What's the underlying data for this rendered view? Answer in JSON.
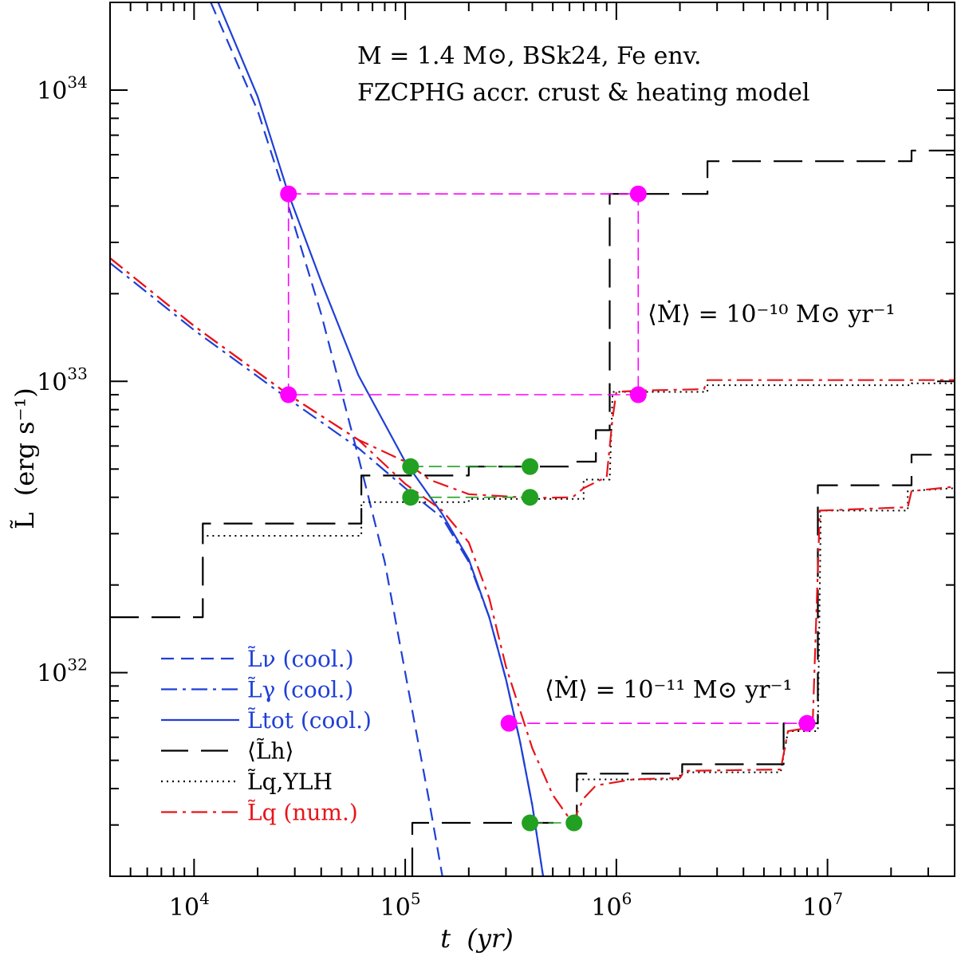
{
  "chart_data": {
    "type": "line",
    "xscale": "log",
    "yscale": "log",
    "xlim": [
      4000,
      40000000
    ],
    "ylim": [
      2e+31,
      2e+34
    ],
    "xlabel": "t  (yr)",
    "ylabel": "L̃  (erg s⁻¹)",
    "x_ticks": [
      {
        "value": 10000,
        "base": "10",
        "exp": "4"
      },
      {
        "value": 100000,
        "base": "10",
        "exp": "5"
      },
      {
        "value": 1000000,
        "base": "10",
        "exp": "6"
      },
      {
        "value": 10000000,
        "base": "10",
        "exp": "7"
      }
    ],
    "y_ticks": [
      {
        "value": 1e+32,
        "base": "10",
        "exp": "32"
      },
      {
        "value": 1e+33,
        "base": "10",
        "exp": "33"
      },
      {
        "value": 1e+34,
        "base": "10",
        "exp": "34"
      }
    ],
    "annotations": {
      "title_line1": "M = 1.4 M⊙, BSk24, Fe env.",
      "title_line2": "FZCPHG accr. crust & heating model",
      "mdot_high": "⟨Ṁ⟩ = 10⁻¹⁰ M⊙ yr⁻¹",
      "mdot_low": "⟨Ṁ⟩ = 10⁻¹¹ M⊙ yr⁻¹"
    },
    "legend": {
      "position": "bottom-left",
      "entries": [
        {
          "label": "L̃ν (cool.)",
          "color": "#1f3fd6",
          "style": "dashed"
        },
        {
          "label": "L̃γ (cool.)",
          "color": "#1f3fd6",
          "style": "dashdot"
        },
        {
          "label": "L̃tot (cool.)",
          "color": "#1f3fd6",
          "style": "solid"
        },
        {
          "label": "⟨L̃h⟩",
          "color": "#000000",
          "style": "longdash"
        },
        {
          "label": "L̃q,YLH",
          "color": "#000000",
          "style": "dotted"
        },
        {
          "label": "L̃q (num.)",
          "color": "#e8141b",
          "style": "dashdot"
        }
      ]
    },
    "series": [
      {
        "name": "L_nu (cool.)",
        "color": "#1f3fd6",
        "style": "dashed",
        "points": [
          [
            12000,
            2e+34
          ],
          [
            20000,
            8.5e+33
          ],
          [
            28000,
            4e+33
          ],
          [
            40000,
            1.7e+33
          ],
          [
            60000,
            5.5e+32
          ],
          [
            80000,
            2.4e+32
          ],
          [
            100000,
            1e+32
          ],
          [
            130000,
            3.6e+31
          ],
          [
            150000,
            2e+31
          ]
        ]
      },
      {
        "name": "L_gamma (cool.)",
        "color": "#1f3fd6",
        "style": "dashdot",
        "points": [
          [
            4000,
            2.55e+33
          ],
          [
            10000,
            1.5e+33
          ],
          [
            28000,
            8.7e+32
          ],
          [
            60000,
            5.9e+32
          ],
          [
            100000,
            4.3e+32
          ],
          [
            150000,
            3.4e+32
          ],
          [
            200000,
            2.4e+32
          ],
          [
            250000,
            1.55e+32
          ],
          [
            300000,
            9.5e+31
          ],
          [
            350000,
            5.8e+31
          ],
          [
            400000,
            3.5e+31
          ],
          [
            450000,
            2e+31
          ]
        ]
      },
      {
        "name": "L_tot (cool.)",
        "color": "#1f3fd6",
        "style": "solid",
        "points": [
          [
            13000,
            2e+34
          ],
          [
            20000,
            9.5e+33
          ],
          [
            28000,
            4.4e+33
          ],
          [
            40000,
            2.2e+33
          ],
          [
            60000,
            1.05e+33
          ],
          [
            100000,
            5.3e+32
          ],
          [
            150000,
            3.5e+32
          ],
          [
            200000,
            2.45e+32
          ],
          [
            250000,
            1.55e+32
          ],
          [
            300000,
            9.5e+31
          ],
          [
            350000,
            5.8e+31
          ],
          [
            400000,
            3.5e+31
          ],
          [
            450000,
            2e+31
          ]
        ]
      },
      {
        "name": "<L_h> 1e-10",
        "color": "#000000",
        "style": "longdash",
        "points": [
          [
            4000,
            1.55e+32
          ],
          [
            11000,
            1.55e+32
          ],
          [
            11000,
            3.25e+32
          ],
          [
            62000,
            3.25e+32
          ],
          [
            62000,
            4.75e+32
          ],
          [
            200000,
            4.75e+32
          ],
          [
            200000,
            5.1e+32
          ],
          [
            600000,
            5.1e+32
          ],
          [
            600000,
            5.3e+32
          ],
          [
            800000,
            5.3e+32
          ],
          [
            800000,
            6.8e+32
          ],
          [
            930000,
            6.8e+32
          ],
          [
            930000,
            4.4e+33
          ],
          [
            2700000,
            4.4e+33
          ],
          [
            2700000,
            5.7e+33
          ],
          [
            25000000,
            5.7e+33
          ],
          [
            25000000,
            6.2e+33
          ],
          [
            40000000,
            6.2e+33
          ]
        ]
      },
      {
        "name": "L_q,YLH 1e-10",
        "color": "#000000",
        "style": "dotted",
        "points": [
          [
            11500,
            2.95e+32
          ],
          [
            62000,
            2.95e+32
          ],
          [
            62000,
            3.85e+32
          ],
          [
            200000,
            3.85e+32
          ],
          [
            200000,
            3.95e+32
          ],
          [
            700000,
            3.95e+32
          ],
          [
            700000,
            4.6e+32
          ],
          [
            930000,
            4.6e+32
          ],
          [
            960000,
            9.2e+32
          ],
          [
            2700000,
            9.2e+32
          ],
          [
            2700000,
            9.7e+32
          ],
          [
            25000000,
            9.7e+32
          ],
          [
            25000000,
            9.85e+32
          ],
          [
            40000000,
            9.85e+32
          ]
        ]
      },
      {
        "name": "L_q (num.) 1e-10",
        "color": "#e8141b",
        "style": "dashdot",
        "points": [
          [
            4000,
            2.65e+33
          ],
          [
            10000,
            1.55e+33
          ],
          [
            28000,
            9e+32
          ],
          [
            60000,
            6.3e+32
          ],
          [
            100000,
            5.3e+32
          ],
          [
            130000,
            4.6e+32
          ],
          [
            200000,
            4.1e+32
          ],
          [
            400000,
            3.98e+32
          ],
          [
            620000,
            4e+32
          ],
          [
            700000,
            4.3e+32
          ],
          [
            900000,
            4.7e+32
          ],
          [
            960000,
            7.5e+32
          ],
          [
            1000000,
            9.2e+32
          ],
          [
            1300000,
            9.3e+32
          ],
          [
            2600000,
            9.4e+32
          ],
          [
            2700000,
            1.01e+33
          ],
          [
            40000000,
            1.01e+33
          ]
        ]
      },
      {
        "name": "<L_h> 1e-11",
        "color": "#000000",
        "style": "longdash",
        "points": [
          [
            108000,
            2e+31
          ],
          [
            108000,
            3.05e+31
          ],
          [
            650000,
            3.05e+31
          ],
          [
            650000,
            4.5e+31
          ],
          [
            2050000,
            4.5e+31
          ],
          [
            2050000,
            4.85e+31
          ],
          [
            6200000,
            4.85e+31
          ],
          [
            6200000,
            6.7e+31
          ],
          [
            9000000,
            6.7e+31
          ],
          [
            9000000,
            4.4e+32
          ],
          [
            25000000,
            4.4e+32
          ],
          [
            25000000,
            5.6e+32
          ],
          [
            40000000,
            5.6e+32
          ]
        ]
      },
      {
        "name": "L_q,YLH 1e-11",
        "color": "#000000",
        "style": "dotted",
        "points": [
          [
            650000,
            4.3e+31
          ],
          [
            2000000,
            4.3e+31
          ],
          [
            2000000,
            4.55e+31
          ],
          [
            6000000,
            4.55e+31
          ],
          [
            6500000,
            6.3e+31
          ],
          [
            9000000,
            6.3e+31
          ],
          [
            9300000,
            3.6e+32
          ],
          [
            24000000,
            3.6e+32
          ],
          [
            24000000,
            4.2e+32
          ],
          [
            40000000,
            4.3e+32
          ]
        ]
      },
      {
        "name": "L_q (num.) 1e-11",
        "color": "#e8141b",
        "style": "dashdot",
        "points": [
          [
            4000,
            2.65e+33
          ],
          [
            10000,
            1.55e+33
          ],
          [
            28000,
            9e+32
          ],
          [
            60000,
            6.3e+32
          ],
          [
            100000,
            4.45e+32
          ],
          [
            150000,
            3.6e+32
          ],
          [
            200000,
            2.8e+32
          ],
          [
            250000,
            1.8e+32
          ],
          [
            300000,
            1.05e+32
          ],
          [
            400000,
            5.5e+31
          ],
          [
            500000,
            3.8e+31
          ],
          [
            620000,
            3.05e+31
          ],
          [
            700000,
            3.7e+31
          ],
          [
            800000,
            4.1e+31
          ],
          [
            1200000,
            4.3e+31
          ],
          [
            2000000,
            4.35e+31
          ],
          [
            2100000,
            4.6e+31
          ],
          [
            6000000,
            4.65e+31
          ],
          [
            6500000,
            6.3e+31
          ],
          [
            8500000,
            6.5e+31
          ],
          [
            9200000,
            3.6e+32
          ],
          [
            24000000,
            3.7e+32
          ],
          [
            25000000,
            4.2e+32
          ],
          [
            40000000,
            4.35e+32
          ]
        ]
      },
      {
        "name": "guide 1e-10 upper",
        "color": "#ff00ff",
        "style": "guide",
        "points": [
          [
            28000,
            4.4e+33
          ],
          [
            1270000,
            4.4e+33
          ],
          [
            1270000,
            9e+32
          ],
          [
            28000,
            9e+32
          ],
          [
            28000,
            4.4e+33
          ]
        ]
      },
      {
        "name": "guide green upper",
        "color": "#22a022",
        "style": "guide",
        "points": [
          [
            106000,
            5.1e+32
          ],
          [
            390000,
            5.1e+32
          ]
        ]
      },
      {
        "name": "guide green lower",
        "color": "#22a022",
        "style": "guide",
        "points": [
          [
            106000,
            4e+32
          ],
          [
            390000,
            4e+32
          ]
        ]
      },
      {
        "name": "guide 1e-11",
        "color": "#ff00ff",
        "style": "guide",
        "points": [
          [
            310000,
            6.7e+31
          ],
          [
            8000000,
            6.7e+31
          ]
        ]
      },
      {
        "name": "guide green bottom",
        "color": "#22a022",
        "style": "guide",
        "points": [
          [
            390000,
            3.05e+31
          ],
          [
            630000,
            3.05e+31
          ]
        ]
      }
    ],
    "markers": [
      {
        "x": 28000,
        "y": 4.4e+33,
        "color": "#ff00ff"
      },
      {
        "x": 1270000,
        "y": 4.4e+33,
        "color": "#ff00ff"
      },
      {
        "x": 28000,
        "y": 9e+32,
        "color": "#ff00ff"
      },
      {
        "x": 1270000,
        "y": 9e+32,
        "color": "#ff00ff"
      },
      {
        "x": 106000,
        "y": 5.1e+32,
        "color": "#22a022"
      },
      {
        "x": 390000,
        "y": 5.1e+32,
        "color": "#22a022"
      },
      {
        "x": 106000,
        "y": 4e+32,
        "color": "#22a022"
      },
      {
        "x": 390000,
        "y": 4e+32,
        "color": "#22a022"
      },
      {
        "x": 310000,
        "y": 6.7e+31,
        "color": "#ff00ff"
      },
      {
        "x": 8000000,
        "y": 6.7e+31,
        "color": "#ff00ff"
      },
      {
        "x": 390000,
        "y": 3.05e+31,
        "color": "#22a022"
      },
      {
        "x": 630000,
        "y": 3.05e+31,
        "color": "#22a022"
      }
    ]
  }
}
